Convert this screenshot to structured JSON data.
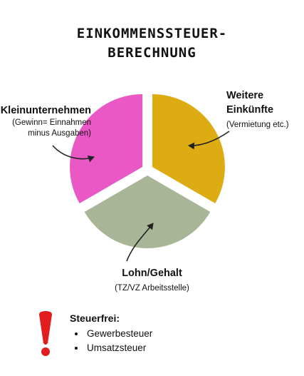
{
  "title": [
    "EINKOMMENSSTEUER-",
    "BERECHNUNG"
  ],
  "segments": [
    {
      "id": "kleinunternehmen",
      "name": "Kleinunternehmen",
      "detail": [
        "(Gewinn= Einnahmen",
        "minus Ausgaben)"
      ],
      "color": "#ea58c5",
      "share": 33.33
    },
    {
      "id": "weitere",
      "name": [
        "Weitere",
        "Einkünfte"
      ],
      "detail": [
        "(Vermietung etc.)"
      ],
      "color": "#dcac12",
      "share": 33.33
    },
    {
      "id": "lohn",
      "name": "Lohn/Gehalt",
      "detail": [
        "(TZ/VZ Arbeitsstelle)"
      ],
      "color": "#a9b597",
      "share": 33.33
    }
  ],
  "steuerfrei": {
    "heading": "Steuerfrei:",
    "items": [
      "Gewerbesteuer",
      "Umsatzsteuer"
    ],
    "icon": "exclamation-icon",
    "icon_color": "#e11d1d"
  }
}
